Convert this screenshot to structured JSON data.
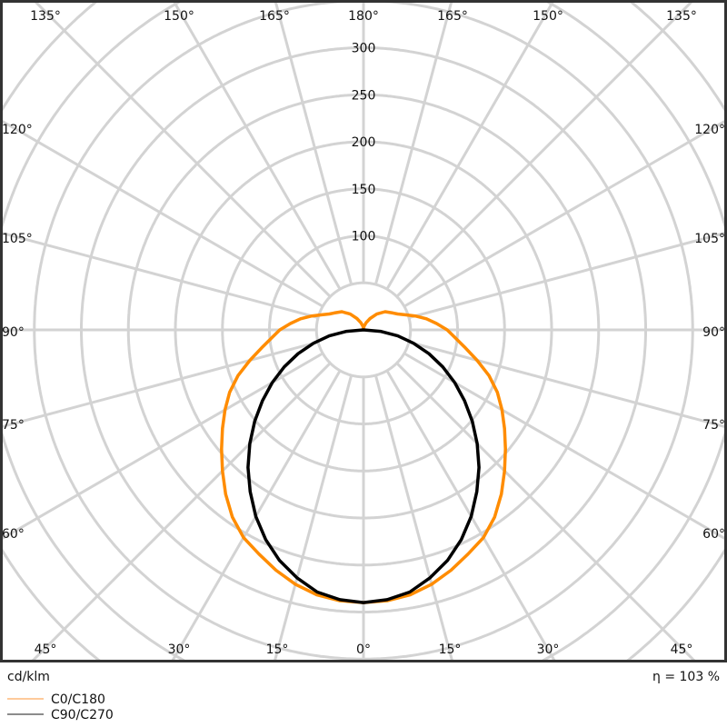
{
  "chart_data": {
    "type": "polar-line",
    "unit_label": "cd/klm",
    "efficiency_label": "η = 103 %",
    "radial_ticks": [
      100,
      150,
      200,
      250,
      300
    ],
    "radial_grid_step": 50,
    "radial_max": 450,
    "angle_grid_step": 15,
    "angle_labels": {
      "top": [
        "135°",
        "150°",
        "165°",
        "180°",
        "165°",
        "150°",
        "135°"
      ],
      "left": [
        "120°",
        "105°",
        "90°",
        "75°",
        "60°"
      ],
      "right": [
        "120°",
        "105°",
        "90°",
        "75°",
        "60°"
      ],
      "bottom": [
        "45°",
        "30°",
        "15°",
        "0°",
        "15°",
        "30°",
        "45°"
      ]
    },
    "grid": true,
    "legend_position": "bottom-left",
    "series": [
      {
        "name": "C0/C180",
        "color": "#ff8c00",
        "angles": [
          0,
          5,
          10,
          15,
          20,
          25,
          30,
          35,
          40,
          45,
          50,
          55,
          60,
          65,
          70,
          75,
          80,
          85,
          90,
          95,
          100,
          105,
          110,
          115,
          120,
          130,
          140,
          150,
          160,
          170,
          180
        ],
        "values": [
          290,
          289,
          286,
          280,
          272,
          263,
          255,
          243,
          228,
          212,
          197,
          183,
          170,
          157,
          142,
          125,
          110,
          98,
          89,
          78,
          68,
          57,
          47,
          40,
          36,
          30,
          22,
          14,
          8,
          4,
          2
        ]
      },
      {
        "name": "C90/C270",
        "color": "#000000",
        "angles": [
          0,
          5,
          10,
          15,
          20,
          25,
          30,
          35,
          40,
          45,
          50,
          55,
          60,
          65,
          70,
          75,
          80,
          85,
          90
        ],
        "values": [
          290,
          288,
          283,
          273,
          261,
          246,
          229,
          210,
          191,
          171,
          151,
          131,
          112,
          93,
          74,
          55,
          37,
          18,
          0
        ]
      }
    ]
  }
}
